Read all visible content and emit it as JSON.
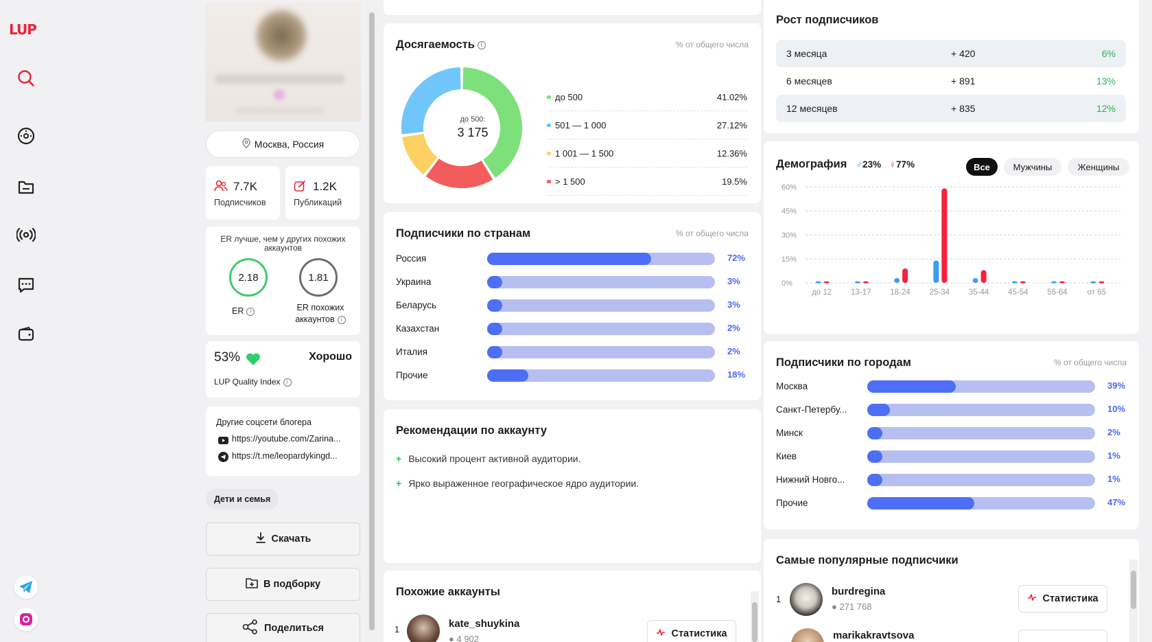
{
  "app": {
    "logo": "LUP"
  },
  "profile": {
    "location": "Москва, Россия",
    "followers": {
      "value": "7.7K",
      "label": "Подписчиков"
    },
    "posts": {
      "value": "1.2K",
      "label": "Публикаций"
    },
    "er": {
      "title": "ER лучше, чем у других похожих аккаунтов",
      "value": "2.18",
      "label": "ER",
      "similar_value": "1.81",
      "similar_label_1": "ER похожих",
      "similar_label_2": "аккаунтов"
    },
    "quality": {
      "percent": "53%",
      "rating": "Хорошо",
      "label": "LUP Quality Index"
    },
    "socials": {
      "title": "Другие соцсети блогера",
      "youtube": "https://youtube.com/Zarina...",
      "telegram": "https://t.me/leopardykingd..."
    },
    "tag": "Дети и семья",
    "buttons": {
      "download": "Скачать",
      "collection": "В подборку",
      "share": "Поделиться"
    }
  },
  "reach": {
    "title": "Досягаемость",
    "subtitle": "% от общего числа",
    "center_label": "до 500:",
    "center_value": "3 175",
    "colors": [
      "#7ee07a",
      "#f25c5c",
      "#fcd062",
      "#70c6fa"
    ]
  },
  "countries": {
    "title": "Подписчики по странам",
    "subtitle": "% от общего числа",
    "items": [
      {
        "name": "Россия",
        "pct": "72%",
        "value": 72
      },
      {
        "name": "Украина",
        "pct": "3%",
        "value": 3
      },
      {
        "name": "Беларусь",
        "pct": "3%",
        "value": 3
      },
      {
        "name": "Казахстан",
        "pct": "2%",
        "value": 2
      },
      {
        "name": "Италия",
        "pct": "2%",
        "value": 2
      },
      {
        "name": "Прочие",
        "pct": "18%",
        "value": 18
      }
    ]
  },
  "recommendations": {
    "title": "Рекомендации по аккаунту",
    "items": [
      "Высокий процент активной аудитории.",
      "Ярко выраженное географическое ядро аудитории."
    ]
  },
  "similar": {
    "title": "Похожие аккаунты",
    "item": {
      "rank": "1",
      "name": "kate_shuykina",
      "followers": "4 902",
      "button": "Статистика"
    }
  },
  "growth": {
    "title": "Рост подписчиков",
    "rows": [
      {
        "period": "3 месяца",
        "delta": "+ 420",
        "pct": "6%"
      },
      {
        "period": "6 месяцев",
        "delta": "+ 891",
        "pct": "13%"
      },
      {
        "period": "12 месяцев",
        "delta": "+ 835",
        "pct": "12%"
      }
    ]
  },
  "demography": {
    "title": "Демография",
    "male": "23%",
    "female": "77%",
    "filters": {
      "all": "Все",
      "men": "Мужчины",
      "women": "Женщины"
    }
  },
  "cities": {
    "title": "Подписчики по городам",
    "subtitle": "% от общего числа",
    "items": [
      {
        "name": "Москва",
        "pct": "39%",
        "value": 39
      },
      {
        "name": "Санкт-Петербу...",
        "pct": "10%",
        "value": 10
      },
      {
        "name": "Минск",
        "pct": "2%",
        "value": 2
      },
      {
        "name": "Киев",
        "pct": "1%",
        "value": 1
      },
      {
        "name": "Нижний Новго...",
        "pct": "1%",
        "value": 1
      },
      {
        "name": "Прочие",
        "pct": "47%",
        "value": 47
      }
    ]
  },
  "popular": {
    "title": "Самые популярные подписчики",
    "items": [
      {
        "rank": "1",
        "name": "burdregina",
        "followers": "271 768",
        "button": "Статистика"
      },
      {
        "name": "marikakravtsova"
      }
    ]
  },
  "chart_data": [
    {
      "type": "pie",
      "categories": [
        "до 500",
        "501 — 1 000",
        "1 001 — 1 500",
        "> 1 500"
      ],
      "values": [
        41.02,
        27.12,
        12.36,
        19.5
      ],
      "labels": [
        "41.02%",
        "27.12%",
        "12.36%",
        "19.5%"
      ]
    },
    {
      "type": "bar",
      "categories": [
        "до 12",
        "13-17",
        "18-24",
        "25-34",
        "35-44",
        "45-54",
        "55-64",
        "от 65"
      ],
      "y_ticks": [
        "60%",
        "45%",
        "30%",
        "15%",
        "0%"
      ],
      "ylim": [
        0,
        60
      ],
      "series": [
        {
          "values": [
            1,
            1,
            3,
            14,
            3,
            1,
            1,
            1
          ],
          "color": "#3b9cf5"
        },
        {
          "values": [
            1,
            1,
            9,
            59,
            8,
            1,
            1,
            1
          ],
          "color": "#f5213f"
        }
      ]
    }
  ]
}
